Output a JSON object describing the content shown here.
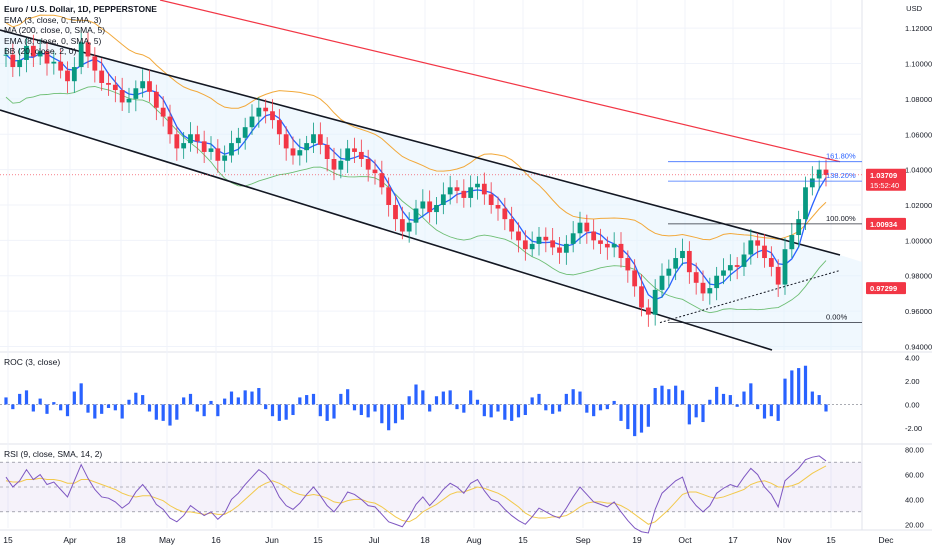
{
  "chart_data": {
    "type": "candlestick",
    "title": "Euro / U.S. Dollar, 1D, PEPPERSTONE",
    "currency": "USD",
    "legend": [
      "EMA (3, close, 0, EMA, 3)",
      "MA (200, close, 0, SMA, 5)",
      "EMA (8, close, 0, SMA, 5)",
      "BB (20, close, 2, 0)"
    ],
    "y_ticks": [
      "1.12000",
      "1.10000",
      "1.08000",
      "1.06000",
      "1.04000",
      "1.02000",
      "1.00000",
      "0.98000",
      "0.96000",
      "0.94000"
    ],
    "y_range": [
      0.938,
      1.128
    ],
    "x_ticks": [
      "15",
      "Apr",
      "18",
      "May",
      "16",
      "Jun",
      "15",
      "Jul",
      "18",
      "Aug",
      "15",
      "Sep",
      "19",
      "Oct",
      "17",
      "Nov",
      "15",
      "Dec"
    ],
    "price_labels": [
      {
        "text": "1.03709",
        "sub": "15:52:40",
        "value": 1.03709,
        "color": "#f23645"
      },
      {
        "text": "1.00934",
        "value": 1.00934,
        "color": "#f23645"
      },
      {
        "text": "0.97299",
        "value": 0.97299,
        "color": "#f23645"
      }
    ],
    "fib_levels": [
      {
        "label": "161.80%",
        "value": 1.0445,
        "color": "#2962ff"
      },
      {
        "label": "138.20%",
        "value": 1.0335,
        "color": "#2962ff"
      },
      {
        "label": "100.00%",
        "value": 1.0093,
        "color": "#131722"
      },
      {
        "label": "0.00%",
        "value": 0.9535,
        "color": "#131722"
      }
    ],
    "close_series": [
      1.105,
      1.098,
      1.102,
      1.11,
      1.104,
      1.107,
      1.1,
      1.101,
      1.096,
      1.09,
      1.098,
      1.112,
      1.104,
      1.096,
      1.089,
      1.088,
      1.085,
      1.078,
      1.08,
      1.086,
      1.09,
      1.084,
      1.075,
      1.07,
      1.06,
      1.052,
      1.055,
      1.06,
      1.056,
      1.05,
      1.052,
      1.045,
      1.048,
      1.055,
      1.058,
      1.064,
      1.07,
      1.075,
      1.073,
      1.068,
      1.06,
      1.052,
      1.048,
      1.051,
      1.055,
      1.06,
      1.054,
      1.046,
      1.04,
      1.045,
      1.052,
      1.05,
      1.046,
      1.04,
      1.038,
      1.03,
      1.02,
      1.012,
      1.005,
      1.01,
      1.018,
      1.022,
      1.016,
      1.02,
      1.026,
      1.03,
      1.028,
      1.024,
      1.03,
      1.032,
      1.026,
      1.02,
      1.018,
      1.012,
      1.005,
      1.0,
      0.995,
      0.998,
      1.002,
      1.0,
      0.996,
      0.993,
      0.998,
      1.004,
      1.01,
      1.005,
      1.0,
      0.998,
      0.996,
      0.998,
      0.99,
      0.983,
      0.974,
      0.962,
      0.958,
      0.972,
      0.98,
      0.984,
      0.99,
      0.994,
      0.982,
      0.976,
      0.97,
      0.973,
      0.98,
      0.983,
      0.986,
      0.985,
      0.992,
      1.0,
      0.997,
      0.99,
      0.985,
      0.975,
      0.995,
      1.003,
      1.012,
      1.03,
      1.035,
      1.04,
      1.037
    ],
    "roc": {
      "title": "ROC (3, close)",
      "y_ticks": [
        "4.00",
        "2.00",
        "0.00",
        "-2.00"
      ],
      "y_range": [
        -3.2,
        4.3
      ],
      "values": [
        0.6,
        -0.4,
        0.9,
        1.2,
        -0.6,
        0.5,
        -0.8,
        0.2,
        -0.5,
        -1.0,
        1.1,
        1.8,
        -0.7,
        -1.2,
        -0.8,
        -0.3,
        -0.5,
        -1.2,
        0.4,
        1.0,
        0.8,
        -0.6,
        -1.3,
        -1.4,
        -1.8,
        -1.3,
        0.6,
        0.9,
        -0.6,
        -1.0,
        0.3,
        -1.0,
        0.5,
        1.1,
        0.6,
        1.2,
        1.1,
        1.4,
        -0.4,
        -1.0,
        -1.4,
        -1.3,
        -0.9,
        0.6,
        0.8,
        0.9,
        -1.0,
        -1.4,
        -1.2,
        0.9,
        1.3,
        -0.5,
        -0.9,
        -1.1,
        -0.6,
        -1.6,
        -2.2,
        -1.6,
        -1.3,
        0.7,
        1.7,
        1.2,
        -0.6,
        0.7,
        1.1,
        1.2,
        -0.4,
        -0.7,
        1.2,
        0.4,
        -1.0,
        -1.1,
        -0.6,
        -1.3,
        -1.4,
        -1.1,
        -0.9,
        0.6,
        0.9,
        -0.5,
        -0.8,
        -0.6,
        0.9,
        1.3,
        1.1,
        -0.7,
        -1.0,
        -0.5,
        -0.4,
        0.3,
        -1.4,
        -2.1,
        -2.7,
        -2.4,
        -1.9,
        1.4,
        1.6,
        1.3,
        1.6,
        1.2,
        -1.7,
        -1.1,
        -1.5,
        0.4,
        1.5,
        0.9,
        0.8,
        -0.2,
        1.1,
        1.8,
        -0.4,
        -1.2,
        -1.0,
        -1.4,
        2.2,
        2.9,
        3.1,
        3.3,
        1.1,
        0.8,
        -0.6
      ]
    },
    "rsi": {
      "title": "RSI (9, close, SMA, 14, 2)",
      "y_ticks": [
        "80.00",
        "60.00",
        "40.00",
        "20.00"
      ],
      "y_range": [
        17,
        83
      ],
      "band": [
        30,
        70
      ],
      "mid": 50,
      "values": [
        58,
        50,
        55,
        64,
        56,
        60,
        52,
        54,
        48,
        42,
        55,
        68,
        57,
        48,
        42,
        41,
        38,
        33,
        37,
        46,
        52,
        45,
        36,
        32,
        25,
        22,
        27,
        35,
        31,
        27,
        30,
        24,
        29,
        40,
        45,
        52,
        58,
        64,
        60,
        53,
        42,
        35,
        32,
        37,
        44,
        50,
        43,
        35,
        30,
        37,
        46,
        44,
        40,
        35,
        34,
        28,
        22,
        20,
        18,
        26,
        36,
        42,
        35,
        41,
        48,
        53,
        50,
        45,
        53,
        56,
        47,
        40,
        38,
        32,
        27,
        23,
        20,
        26,
        33,
        30,
        27,
        25,
        33,
        42,
        50,
        44,
        38,
        36,
        34,
        38,
        30,
        23,
        17,
        14,
        13,
        32,
        45,
        50,
        55,
        58,
        42,
        35,
        30,
        35,
        45,
        49,
        52,
        50,
        58,
        65,
        60,
        50,
        44,
        34,
        55,
        60,
        65,
        72,
        74,
        75,
        71
      ],
      "signal": [
        55,
        54,
        54,
        56,
        56,
        57,
        56,
        56,
        55,
        53,
        53,
        56,
        56,
        54,
        52,
        50,
        48,
        45,
        43,
        42,
        43,
        43,
        41,
        39,
        35,
        32,
        30,
        30,
        29,
        28,
        29,
        28,
        28,
        31,
        35,
        40,
        45,
        50,
        53,
        55,
        53,
        50,
        46,
        44,
        43,
        44,
        43,
        41,
        38,
        37,
        39,
        40,
        40,
        38,
        37,
        34,
        30,
        26,
        23,
        22,
        25,
        30,
        33,
        36,
        40,
        44,
        46,
        46,
        48,
        50,
        49,
        47,
        45,
        42,
        38,
        34,
        29,
        26,
        25,
        25,
        26,
        26,
        27,
        30,
        34,
        37,
        38,
        38,
        37,
        37,
        35,
        32,
        28,
        24,
        20,
        22,
        27,
        32,
        38,
        44,
        46,
        46,
        44,
        42,
        41,
        42,
        44,
        46,
        48,
        52,
        54,
        55,
        53,
        50,
        50,
        51,
        53,
        57,
        61,
        64,
        67
      ]
    }
  }
}
